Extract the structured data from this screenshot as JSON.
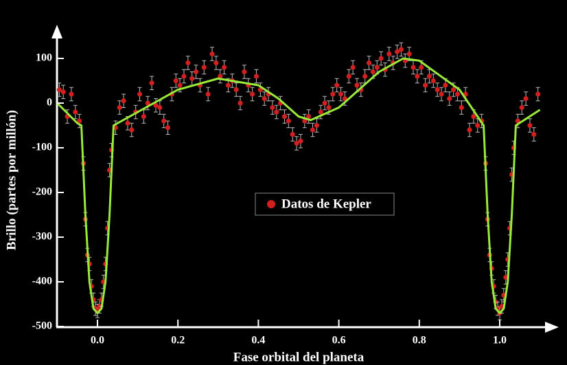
{
  "chart_data": {
    "type": "scatter",
    "xlabel": "Fase orbital del planeta",
    "ylabel": "Brillo (partes por millón)",
    "xlim": [
      -0.1,
      1.1
    ],
    "ylim": [
      -500,
      150
    ],
    "xticks": [
      {
        "value": 0,
        "label": "0.0"
      },
      0.2,
      0.4,
      0.6,
      0.8,
      {
        "value": 1,
        "label": "1.0"
      }
    ],
    "yticks": [
      -500,
      -400,
      -300,
      -200,
      -100,
      0,
      100
    ],
    "legend": "center",
    "series": [
      {
        "name": "Datos de Kepler",
        "type": "scatter",
        "color": "#d21f1f",
        "error": 15,
        "x": [
          -0.095,
          -0.085,
          -0.075,
          -0.065,
          -0.055,
          -0.045,
          -0.035,
          -0.03,
          -0.025,
          -0.02,
          -0.015,
          -0.01,
          -0.005,
          0.0,
          0.005,
          0.01,
          0.015,
          0.02,
          0.025,
          0.03,
          0.035,
          0.045,
          0.055,
          0.065,
          0.075,
          0.085,
          0.095,
          0.105,
          0.115,
          0.125,
          0.135,
          0.145,
          0.155,
          0.165,
          0.175,
          0.185,
          0.195,
          0.205,
          0.215,
          0.225,
          0.235,
          0.245,
          0.255,
          0.265,
          0.275,
          0.285,
          0.295,
          0.305,
          0.315,
          0.325,
          0.335,
          0.345,
          0.355,
          0.365,
          0.375,
          0.385,
          0.395,
          0.405,
          0.415,
          0.425,
          0.435,
          0.445,
          0.455,
          0.465,
          0.475,
          0.485,
          0.495,
          0.505,
          0.515,
          0.525,
          0.535,
          0.545,
          0.555,
          0.565,
          0.575,
          0.585,
          0.595,
          0.605,
          0.615,
          0.625,
          0.635,
          0.645,
          0.655,
          0.665,
          0.675,
          0.685,
          0.695,
          0.705,
          0.715,
          0.725,
          0.735,
          0.745,
          0.755,
          0.765,
          0.775,
          0.785,
          0.795,
          0.805,
          0.815,
          0.825,
          0.835,
          0.845,
          0.855,
          0.865,
          0.875,
          0.885,
          0.895,
          0.905,
          0.915,
          0.925,
          0.935,
          0.945,
          0.955,
          0.965,
          0.97,
          0.975,
          0.98,
          0.985,
          0.99,
          0.995,
          1.0,
          1.005,
          1.01,
          1.015,
          1.02,
          1.025,
          1.03,
          1.035,
          1.045,
          1.055,
          1.065,
          1.075,
          1.085,
          1.095
        ],
        "values": [
          30,
          25,
          -30,
          20,
          -20,
          -40,
          -135,
          -260,
          -340,
          -360,
          -410,
          -440,
          -460,
          -465,
          -455,
          -440,
          -400,
          -360,
          -280,
          -150,
          -105,
          -55,
          -10,
          5,
          -45,
          -60,
          -20,
          20,
          -30,
          0,
          45,
          -5,
          -10,
          -40,
          -55,
          20,
          50,
          40,
          60,
          90,
          55,
          70,
          40,
          80,
          20,
          110,
          90,
          60,
          80,
          40,
          50,
          30,
          0,
          70,
          40,
          20,
          60,
          30,
          10,
          20,
          -10,
          -20,
          0,
          -30,
          -40,
          -70,
          -90,
          -85,
          -40,
          -30,
          -60,
          -50,
          -20,
          0,
          -10,
          20,
          40,
          20,
          10,
          60,
          80,
          40,
          30,
          60,
          90,
          70,
          80,
          100,
          75,
          110,
          90,
          115,
          120,
          95,
          110,
          80,
          60,
          80,
          40,
          60,
          50,
          30,
          20,
          40,
          10,
          30,
          20,
          -10,
          20,
          -60,
          -30,
          -50,
          -40,
          -135,
          -260,
          -340,
          -370,
          -410,
          -445,
          -460,
          -470,
          -455,
          -430,
          -390,
          -350,
          -280,
          -160,
          -100,
          -40,
          -10,
          10,
          -50,
          -70,
          20
        ]
      },
      {
        "type": "line",
        "color": "#9aea3a",
        "x": [
          -0.1,
          -0.05,
          -0.04,
          -0.03,
          -0.02,
          -0.01,
          0,
          0.01,
          0.02,
          0.03,
          0.04,
          0.1,
          0.2,
          0.3,
          0.4,
          0.45,
          0.5,
          0.53,
          0.6,
          0.7,
          0.76,
          0.8,
          0.9,
          0.96,
          0.97,
          0.98,
          0.99,
          1.0,
          1.01,
          1.02,
          1.03,
          1.04,
          1.1
        ],
        "values": [
          0,
          -45,
          -50,
          -250,
          -400,
          -460,
          -470,
          -460,
          -400,
          -250,
          -50,
          -20,
          30,
          55,
          40,
          10,
          -30,
          -38,
          -10,
          70,
          100,
          95,
          30,
          -50,
          -250,
          -400,
          -460,
          -470,
          -460,
          -400,
          -250,
          -50,
          -15
        ]
      }
    ]
  }
}
